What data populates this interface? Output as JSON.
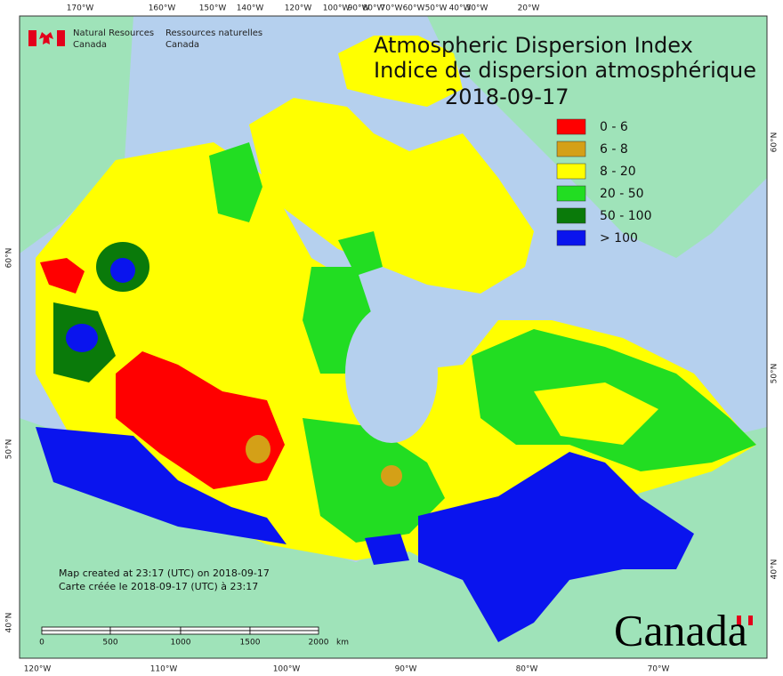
{
  "header": {
    "agency_en": [
      "Natural Resources",
      "Canada"
    ],
    "agency_fr": [
      "Ressources naturelles",
      "Canada"
    ]
  },
  "title": {
    "line_en": "Atmospheric Dispersion Index",
    "line_fr": "Indice de dispersion atmosphérique",
    "date": "2018-09-17"
  },
  "legend": [
    {
      "label": "0 - 6",
      "color": "#ff0000"
    },
    {
      "label": "6 - 8",
      "color": "#d4a017"
    },
    {
      "label": "8 - 20",
      "color": "#ffff00"
    },
    {
      "label": "20 - 50",
      "color": "#22dd22"
    },
    {
      "label": "50 - 100",
      "color": "#0a7a0a"
    },
    {
      "label": "> 100",
      "color": "#0a14ee"
    }
  ],
  "notes": [
    "Map created at 23:17 (UTC) on 2018-09-17",
    "Carte créée le 2018-09-17 (UTC) à 23:17"
  ],
  "scale_bar": {
    "ticks": [
      "0",
      "500",
      "1000",
      "1500",
      "2000"
    ],
    "unit": "km"
  },
  "graticule": {
    "top": [
      "170°W",
      "160°W",
      "150°W",
      "140°W",
      "120°W",
      "100°W",
      "90°W",
      "80°W",
      "70°W",
      "60°W",
      "50°W",
      "40°W",
      "30°W",
      "20°W"
    ],
    "bottom": [
      "120°W",
      "110°W",
      "100°W",
      "90°W",
      "80°W",
      "70°W"
    ],
    "left": [
      "60°N",
      "50°N",
      "40°N"
    ],
    "right": [
      "60°N",
      "50°N",
      "40°N"
    ]
  },
  "wordmark": "Canada"
}
